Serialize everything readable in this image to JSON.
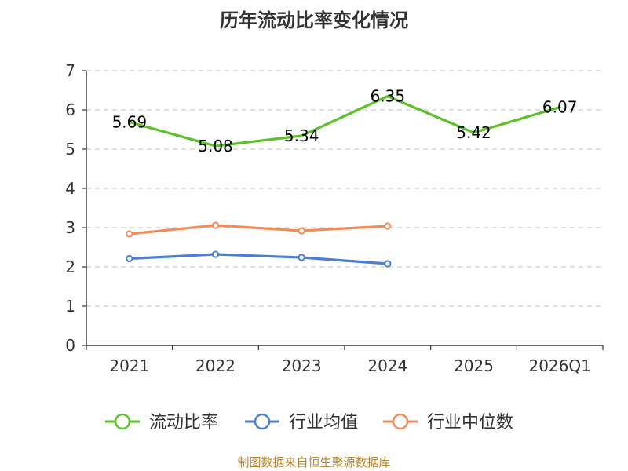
{
  "title": "历年流动比率变化情况",
  "footer": "制图数据来自恒生聚源数据库",
  "chart_data": {
    "type": "line",
    "title": "历年流动比率变化情况",
    "xlabel": "",
    "ylabel": "",
    "ylim": [
      0,
      7
    ],
    "yticks": [
      0,
      1,
      2,
      3,
      4,
      5,
      6,
      7
    ],
    "grid": true,
    "legend_position": "bottom",
    "categories": [
      "2021",
      "2022",
      "2023",
      "2024",
      "2025",
      "2026Q1"
    ],
    "series": [
      {
        "name": "流动比率",
        "color": "#5bc22a",
        "values": [
          5.69,
          5.08,
          5.34,
          6.35,
          5.42,
          6.07
        ],
        "labels": [
          "5.69",
          "5.08",
          "5.34",
          "6.35",
          "5.42",
          "6.07"
        ],
        "show_labels": true,
        "markers": false
      },
      {
        "name": "行业均值",
        "color": "#4b7fd6",
        "values": [
          2.21,
          2.32,
          2.24,
          2.08,
          null,
          null
        ],
        "show_labels": false,
        "markers": true
      },
      {
        "name": "行业中位数",
        "color": "#f28c5a",
        "values": [
          2.84,
          3.06,
          2.92,
          3.04,
          null,
          null
        ],
        "show_labels": false,
        "markers": true
      }
    ]
  }
}
